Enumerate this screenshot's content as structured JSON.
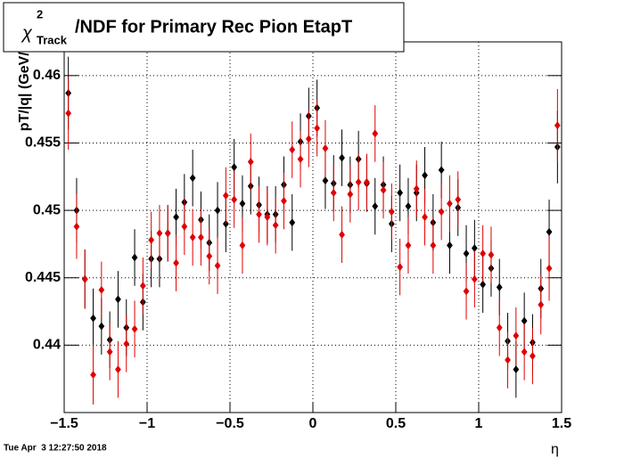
{
  "chart_data": {
    "type": "errorbar",
    "title": {
      "symbol": "χ",
      "superscript": "2",
      "subscript": "Track",
      "text": "/NDF for Primary Rec Pion EtapT"
    },
    "x_label": "η",
    "y_label": "pT/|q| (GeV/c)",
    "timestamp": "Tue Apr  3 12:27:50 2018",
    "x": [
      -1.475,
      -1.425,
      -1.375,
      -1.325,
      -1.275,
      -1.225,
      -1.175,
      -1.125,
      -1.075,
      -1.025,
      -0.975,
      -0.925,
      -0.875,
      -0.825,
      -0.775,
      -0.725,
      -0.675,
      -0.625,
      -0.575,
      -0.525,
      -0.475,
      -0.425,
      -0.375,
      -0.325,
      -0.275,
      -0.225,
      -0.175,
      -0.125,
      -0.075,
      -0.025,
      0.025,
      0.075,
      0.125,
      0.175,
      0.225,
      0.275,
      0.325,
      0.375,
      0.425,
      0.475,
      0.525,
      0.575,
      0.625,
      0.675,
      0.725,
      0.775,
      0.825,
      0.875,
      0.925,
      0.975,
      1.025,
      1.075,
      1.125,
      1.175,
      1.225,
      1.275,
      1.325,
      1.375,
      1.425,
      1.475
    ],
    "series": [
      {
        "color": "#000000",
        "values": [
          0.4587,
          0.45,
          0.4449,
          0.442,
          0.4414,
          0.4404,
          0.4434,
          0.4413,
          0.4465,
          0.4432,
          0.4464,
          0.4464,
          0.4483,
          0.4495,
          0.4506,
          0.4524,
          0.4493,
          0.4476,
          0.45,
          0.449,
          0.4532,
          0.4505,
          0.4518,
          0.4504,
          0.4497,
          0.4497,
          0.4519,
          0.4491,
          0.4551,
          0.457,
          0.4576,
          0.4522,
          0.452,
          0.4539,
          0.4519,
          0.4538,
          0.452,
          0.4503,
          0.4519,
          0.449,
          0.4513,
          0.4503,
          0.4513,
          0.4526,
          0.4491,
          0.453,
          0.4474,
          0.4502,
          0.4468,
          0.4472,
          0.4445,
          0.4457,
          0.4443,
          0.4403,
          0.4382,
          0.4418,
          0.4402,
          0.4442,
          0.4484,
          0.4547
        ],
        "errors": [
          0.0027,
          0.0024,
          0.0022,
          0.0022,
          0.0021,
          0.0021,
          0.0021,
          0.0021,
          0.0021,
          0.0021,
          0.0021,
          0.0021,
          0.0021,
          0.0021,
          0.0021,
          0.0021,
          0.0021,
          0.0021,
          0.0021,
          0.0021,
          0.0021,
          0.0021,
          0.0021,
          0.0021,
          0.0021,
          0.0021,
          0.0021,
          0.0021,
          0.0021,
          0.0021,
          0.0021,
          0.0021,
          0.0021,
          0.0021,
          0.0021,
          0.0021,
          0.0021,
          0.0021,
          0.0021,
          0.0021,
          0.0021,
          0.0021,
          0.0021,
          0.0021,
          0.0021,
          0.0021,
          0.0021,
          0.0021,
          0.0021,
          0.0021,
          0.0021,
          0.0021,
          0.0021,
          0.0021,
          0.0021,
          0.0021,
          0.0021,
          0.0022,
          0.0024,
          0.0027
        ]
      },
      {
        "color": "#e00000",
        "values": [
          0.4572,
          0.4488,
          0.4449,
          0.4378,
          0.4441,
          0.4395,
          0.4382,
          0.4401,
          0.4412,
          0.4444,
          0.4478,
          0.4483,
          0.4483,
          0.4461,
          0.4488,
          0.448,
          0.448,
          0.4466,
          0.4459,
          0.4511,
          0.4508,
          0.4474,
          0.4536,
          0.4497,
          0.4495,
          0.4489,
          0.4507,
          0.4545,
          0.4538,
          0.4553,
          0.4561,
          0.4546,
          0.4513,
          0.4482,
          0.4512,
          0.4521,
          0.4521,
          0.4557,
          0.4515,
          0.4499,
          0.4458,
          0.4474,
          0.4516,
          0.4495,
          0.4474,
          0.4499,
          0.4505,
          0.4508,
          0.444,
          0.4449,
          0.4468,
          0.4467,
          0.4413,
          0.4389,
          0.4407,
          0.4395,
          0.4392,
          0.443,
          0.4457,
          0.4563
        ],
        "errors": [
          0.0027,
          0.0024,
          0.0022,
          0.0022,
          0.0021,
          0.0021,
          0.0021,
          0.0021,
          0.0021,
          0.0021,
          0.0021,
          0.0021,
          0.0021,
          0.0021,
          0.0021,
          0.0021,
          0.0021,
          0.0021,
          0.0021,
          0.0021,
          0.0021,
          0.0021,
          0.0021,
          0.0021,
          0.0021,
          0.0021,
          0.0021,
          0.0021,
          0.0021,
          0.0021,
          0.0021,
          0.0021,
          0.0021,
          0.0021,
          0.0021,
          0.0021,
          0.0021,
          0.0021,
          0.0021,
          0.0021,
          0.0021,
          0.0021,
          0.0021,
          0.0021,
          0.0021,
          0.0021,
          0.0021,
          0.0021,
          0.0021,
          0.0021,
          0.0021,
          0.0021,
          0.0021,
          0.0021,
          0.0021,
          0.0021,
          0.0021,
          0.0022,
          0.0024,
          0.0027
        ]
      }
    ],
    "xlim": [
      -1.5,
      1.5
    ],
    "xticks": [
      {
        "value": -1.5,
        "label": "−1.5"
      },
      {
        "value": -1,
        "label": "−1"
      },
      {
        "value": -0.5,
        "label": "−0.5"
      },
      0,
      0.5,
      1,
      1.5
    ],
    "ylim": [
      0.435,
      0.4625
    ],
    "yticks": [
      0.44,
      0.445,
      0.45,
      0.455,
      0.46
    ],
    "grid": true
  }
}
